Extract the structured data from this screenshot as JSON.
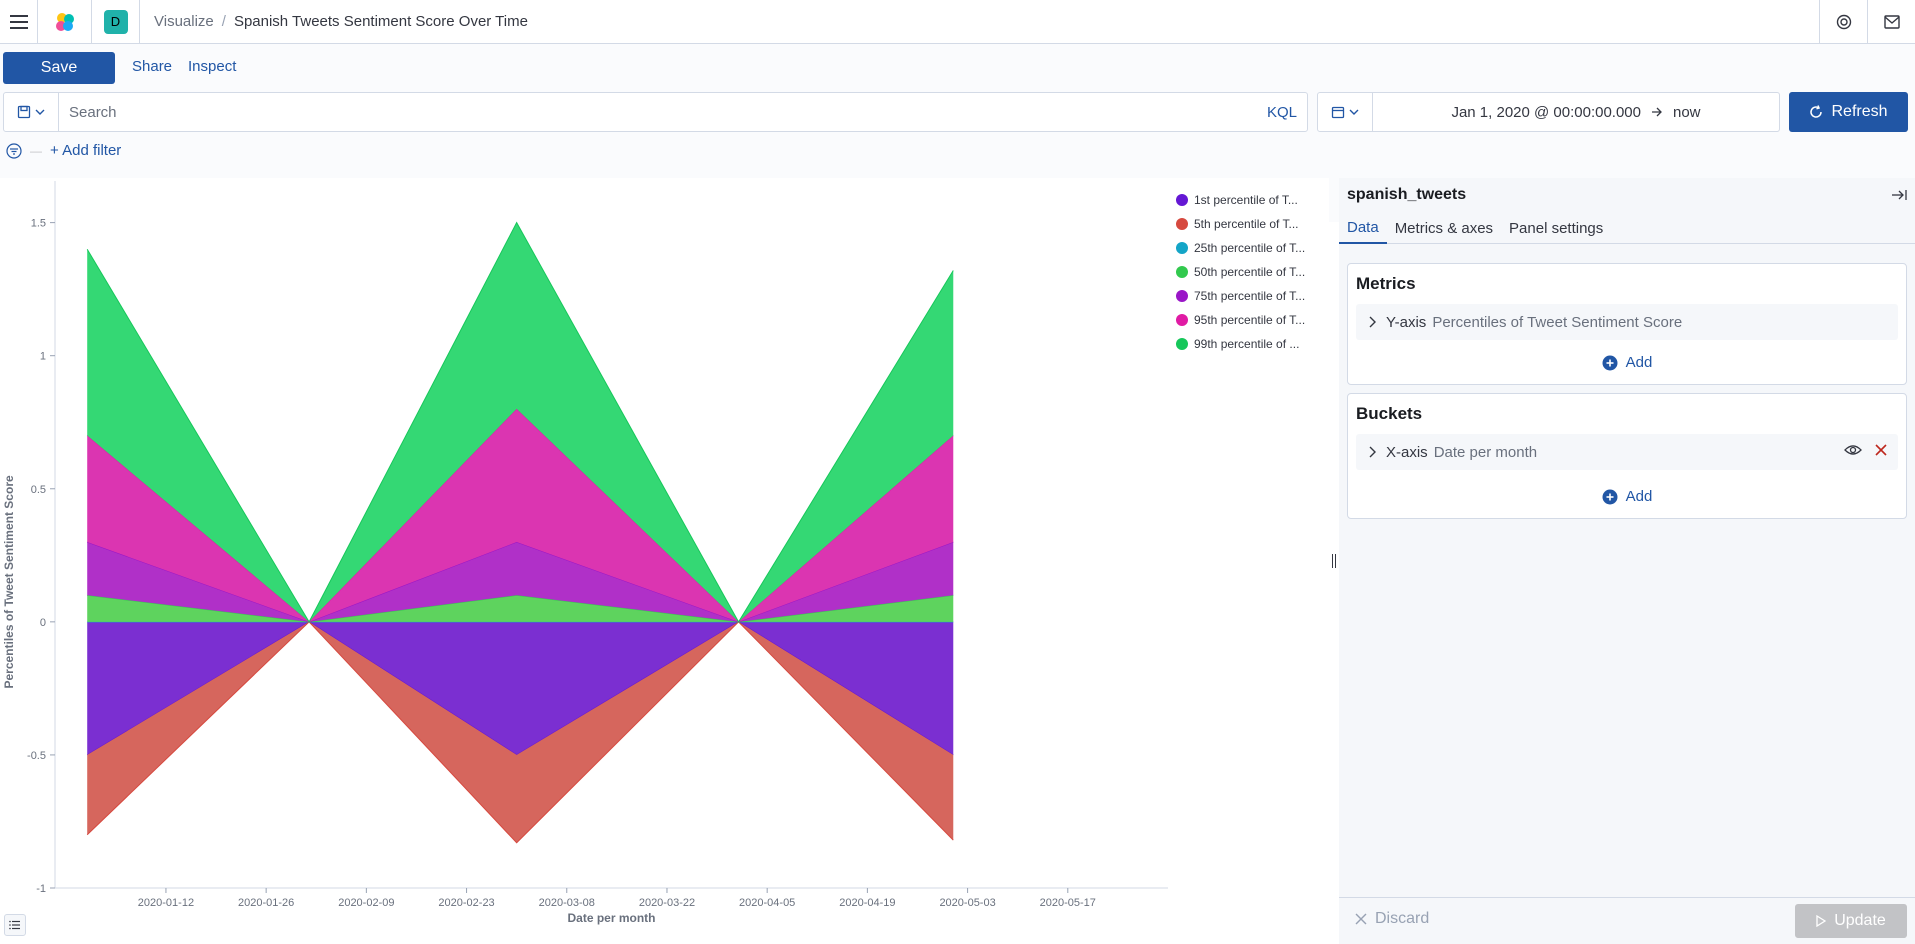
{
  "header": {
    "space_initial": "D",
    "breadcrumbs": {
      "parent": "Visualize",
      "current": "Spanish Tweets Sentiment Score Over Time"
    }
  },
  "toolbar": {
    "save_label": "Save",
    "share_label": "Share",
    "inspect_label": "Inspect"
  },
  "query": {
    "placeholder": "Search",
    "language": "KQL"
  },
  "time": {
    "start": "Jan 1, 2020 @ 00:00:00.000",
    "end": "now",
    "refresh_label": "Refresh"
  },
  "filters": {
    "add_label": "+ Add filter"
  },
  "chart_data": {
    "type": "area",
    "stacked": true,
    "xlabel": "Date per month",
    "ylabel": "Percentiles of Tweet Sentiment Score",
    "ylim": [
      -1,
      1.6
    ],
    "y_ticks": [
      -1,
      -0.5,
      0,
      0.5,
      1,
      1.5
    ],
    "x_tick_labels": [
      "2020-01-12",
      "2020-01-26",
      "2020-02-09",
      "2020-02-23",
      "2020-03-08",
      "2020-03-22",
      "2020-04-05",
      "2020-04-19",
      "2020-05-03",
      "2020-05-17"
    ],
    "x": [
      "2020-01-01",
      "2020-02-01",
      "2020-03-01",
      "2020-04-01",
      "2020-05-01"
    ],
    "grid": false,
    "legend_position": "right",
    "series": [
      {
        "name": "1st percentile of T...",
        "color": "#6417d4",
        "fill": "#7b2fd1",
        "values": [
          -0.5,
          0,
          -0.5,
          0,
          -0.5
        ]
      },
      {
        "name": "5th percentile of T...",
        "color": "#d6493f",
        "fill": "#d6665d",
        "values": [
          -0.3,
          0,
          -0.33,
          0,
          -0.32
        ]
      },
      {
        "name": "25th percentile of T...",
        "color": "#14a5c7",
        "fill": "#14a5c7",
        "values": [
          0,
          0,
          0,
          0,
          0
        ]
      },
      {
        "name": "50th percentile of T...",
        "color": "#32c94e",
        "fill": "#5ed35e",
        "values": [
          0.1,
          0,
          0.1,
          0,
          0.1
        ]
      },
      {
        "name": "75th percentile of T...",
        "color": "#9a16c7",
        "fill": "#b030c8",
        "values": [
          0.2,
          0,
          0.2,
          0,
          0.2
        ]
      },
      {
        "name": "95th percentile of T...",
        "color": "#e01ba4",
        "fill": "#db35b1",
        "values": [
          0.4,
          0,
          0.5,
          0,
          0.4
        ]
      },
      {
        "name": "99th percentile of ...",
        "color": "#16c75a",
        "fill": "#34d874",
        "values": [
          0.7,
          0,
          0.7,
          0,
          0.62
        ]
      }
    ]
  },
  "sidebar": {
    "index_pattern": "spanish_tweets",
    "tabs": [
      "Data",
      "Metrics & axes",
      "Panel settings"
    ],
    "metrics": {
      "title": "Metrics",
      "axis": "Y-axis",
      "desc": "Percentiles of Tweet Sentiment Score",
      "add_label": "Add"
    },
    "buckets": {
      "title": "Buckets",
      "axis": "X-axis",
      "desc": "Date per month",
      "add_label": "Add"
    },
    "discard_label": "Discard",
    "update_label": "Update"
  }
}
